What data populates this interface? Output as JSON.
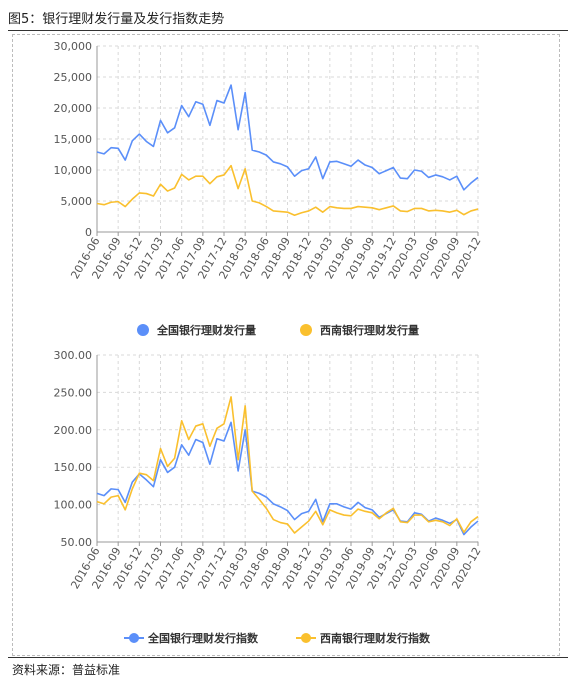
{
  "header": {
    "title": "图5：银行理财发行量及发行指数走势"
  },
  "footer": {
    "source": "资料来源：普益标准"
  },
  "colors": {
    "national": "#5b8ff9",
    "southwest": "#fac02e",
    "grid": "#d9d9d9",
    "axis": "#999999"
  },
  "chart_data": [
    {
      "type": "line",
      "title": "",
      "xlabel": "",
      "ylabel": "",
      "ylim": [
        0,
        30000
      ],
      "yticks": [
        "0",
        "5,000",
        "10,000",
        "15,000",
        "20,000",
        "25,000",
        "30,000"
      ],
      "ytick_values": [
        0,
        5000,
        10000,
        15000,
        20000,
        25000,
        30000
      ],
      "grid": true,
      "legend": "bottom",
      "xtick_labels": [
        "2016-06",
        "2016-09",
        "2016-12",
        "2017-03",
        "2017-06",
        "2017-09",
        "2017-12",
        "2018-03",
        "2018-06",
        "2018-09",
        "2018-12",
        "2019-03",
        "2019-06",
        "2019-09",
        "2019-12",
        "2020-03",
        "2020-06",
        "2020-09",
        "2020-12"
      ],
      "x": [
        "2016-06",
        "2016-07",
        "2016-08",
        "2016-09",
        "2016-10",
        "2016-11",
        "2016-12",
        "2017-01",
        "2017-02",
        "2017-03",
        "2017-04",
        "2017-05",
        "2017-06",
        "2017-07",
        "2017-08",
        "2017-09",
        "2017-10",
        "2017-11",
        "2017-12",
        "2018-01",
        "2018-02",
        "2018-03",
        "2018-04",
        "2018-05",
        "2018-06",
        "2018-07",
        "2018-08",
        "2018-09",
        "2018-10",
        "2018-11",
        "2018-12",
        "2019-01",
        "2019-02",
        "2019-03",
        "2019-04",
        "2019-05",
        "2019-06",
        "2019-07",
        "2019-08",
        "2019-09",
        "2019-10",
        "2019-11",
        "2019-12",
        "2020-01",
        "2020-02",
        "2020-03",
        "2020-04",
        "2020-05",
        "2020-06",
        "2020-07",
        "2020-08",
        "2020-09",
        "2020-10",
        "2020-11",
        "2020-12"
      ],
      "series": [
        {
          "name": "全国银行理财发行量",
          "values": [
            12900,
            12600,
            13600,
            13500,
            11600,
            14700,
            15800,
            14600,
            13800,
            18000,
            16000,
            16800,
            20400,
            18600,
            21000,
            20600,
            17200,
            21200,
            20800,
            23700,
            16500,
            22500,
            13200,
            12900,
            12400,
            11300,
            11000,
            10500,
            9000,
            9900,
            10200,
            12100,
            8600,
            11300,
            11400,
            11000,
            10600,
            11600,
            10800,
            10400,
            9400,
            9900,
            10400,
            8700,
            8600,
            10000,
            9800,
            8800,
            9200,
            8900,
            8400,
            9000,
            6800,
            7900,
            8800
          ]
        },
        {
          "name": "西南银行理财发行量",
          "values": [
            4600,
            4400,
            4800,
            4900,
            4100,
            5300,
            6300,
            6200,
            5800,
            7700,
            6600,
            7100,
            9300,
            8400,
            9000,
            9000,
            7800,
            8900,
            9200,
            10700,
            7000,
            10200,
            5000,
            4700,
            4100,
            3400,
            3300,
            3200,
            2700,
            3100,
            3400,
            4000,
            3200,
            4100,
            3900,
            3800,
            3800,
            4100,
            4000,
            3900,
            3600,
            3900,
            4200,
            3400,
            3300,
            3800,
            3800,
            3400,
            3500,
            3400,
            3200,
            3500,
            2800,
            3400,
            3700
          ]
        }
      ]
    },
    {
      "type": "line",
      "title": "",
      "xlabel": "",
      "ylabel": "",
      "ylim": [
        50,
        300
      ],
      "yticks": [
        "50.00",
        "100.00",
        "150.00",
        "200.00",
        "250.00",
        "300.00"
      ],
      "ytick_values": [
        50,
        100,
        150,
        200,
        250,
        300
      ],
      "grid": true,
      "legend": "bottom",
      "xtick_labels": [
        "2016-06",
        "2016-09",
        "2016-12",
        "2017-03",
        "2017-06",
        "2017-09",
        "2017-12",
        "2018-03",
        "2018-06",
        "2018-09",
        "2018-12",
        "2019-03",
        "2019-06",
        "2019-09",
        "2019-12",
        "2020-03",
        "2020-06",
        "2020-09",
        "2020-12"
      ],
      "x": [
        "2016-06",
        "2016-07",
        "2016-08",
        "2016-09",
        "2016-10",
        "2016-11",
        "2016-12",
        "2017-01",
        "2017-02",
        "2017-03",
        "2017-04",
        "2017-05",
        "2017-06",
        "2017-07",
        "2017-08",
        "2017-09",
        "2017-10",
        "2017-11",
        "2017-12",
        "2018-01",
        "2018-02",
        "2018-03",
        "2018-04",
        "2018-05",
        "2018-06",
        "2018-07",
        "2018-08",
        "2018-09",
        "2018-10",
        "2018-11",
        "2018-12",
        "2019-01",
        "2019-02",
        "2019-03",
        "2019-04",
        "2019-05",
        "2019-06",
        "2019-07",
        "2019-08",
        "2019-09",
        "2019-10",
        "2019-11",
        "2019-12",
        "2020-01",
        "2020-02",
        "2020-03",
        "2020-04",
        "2020-05",
        "2020-06",
        "2020-07",
        "2020-08",
        "2020-09",
        "2020-10",
        "2020-11",
        "2020-12"
      ],
      "series": [
        {
          "name": "全国银行理财发行指数",
          "values": [
            115,
            112,
            121,
            120,
            103,
            130,
            141,
            133,
            124,
            160,
            143,
            150,
            180,
            166,
            187,
            183,
            154,
            188,
            185,
            210,
            145,
            200,
            118,
            115,
            110,
            101,
            97,
            92,
            80,
            88,
            91,
            107,
            77,
            101,
            101,
            97,
            94,
            103,
            96,
            93,
            83,
            88,
            93,
            78,
            77,
            89,
            87,
            78,
            82,
            79,
            75,
            80,
            60,
            70,
            78
          ]
        },
        {
          "name": "西南银行理财发行指数",
          "values": [
            104,
            101,
            110,
            112,
            93,
            121,
            142,
            140,
            132,
            175,
            151,
            162,
            212,
            187,
            205,
            208,
            178,
            202,
            208,
            244,
            160,
            232,
            118,
            107,
            95,
            80,
            76,
            74,
            62,
            70,
            78,
            91,
            73,
            93,
            89,
            86,
            85,
            94,
            91,
            89,
            81,
            89,
            95,
            77,
            76,
            86,
            86,
            77,
            79,
            77,
            72,
            81,
            63,
            77,
            84
          ]
        }
      ]
    }
  ]
}
